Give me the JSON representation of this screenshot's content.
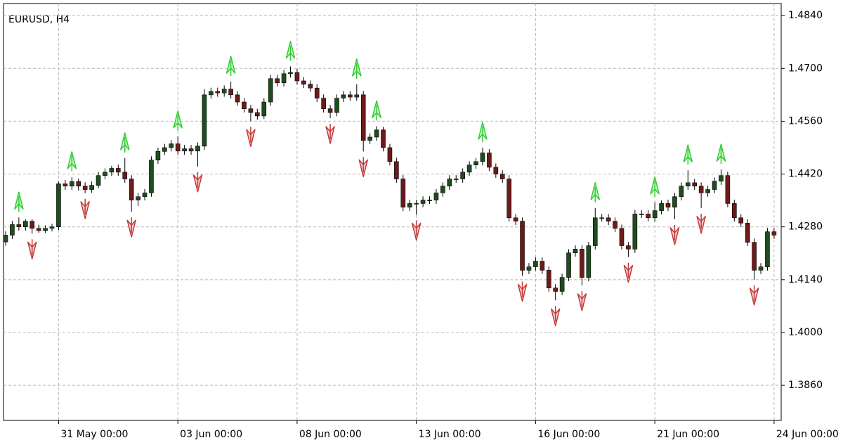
{
  "chart_data": {
    "type": "candlestick",
    "title": "EURUSD, H4",
    "categories": [
      null,
      null,
      null,
      null,
      null,
      null,
      null,
      null,
      "31 May 00:00",
      null,
      null,
      null,
      null,
      null,
      null,
      null,
      null,
      null,
      null,
      null,
      null,
      null,
      null,
      null,
      null,
      null,
      "03 Jun 00:00",
      null,
      null,
      null,
      null,
      null,
      null,
      null,
      null,
      null,
      null,
      null,
      null,
      null,
      null,
      null,
      null,
      null,
      "08 Jun 00:00",
      null,
      null,
      null,
      null,
      null,
      null,
      null,
      null,
      null,
      null,
      null,
      null,
      null,
      null,
      null,
      null,
      null,
      "13 Jun 00:00",
      null,
      null,
      null,
      null,
      null,
      null,
      null,
      null,
      null,
      null,
      null,
      null,
      null,
      null,
      null,
      null,
      null,
      "16 Jun 00:00",
      null,
      null,
      null,
      null,
      null,
      null,
      null,
      null,
      null,
      null,
      null,
      null,
      null,
      null,
      null,
      null,
      null,
      "21 Jun 00:00",
      null,
      null,
      null,
      null,
      null,
      null,
      null,
      null,
      null,
      null,
      null,
      null,
      null,
      null,
      null,
      null,
      null,
      "24 Jun 00:00"
    ],
    "open": [
      1.424,
      1.4258,
      1.4286,
      1.428,
      1.4295,
      1.4276,
      1.427,
      1.4276,
      1.428,
      1.4394,
      1.4388,
      1.44,
      1.4388,
      1.4379,
      1.439,
      1.4416,
      1.4425,
      1.4435,
      1.4425,
      1.4407,
      1.4351,
      1.436,
      1.437,
      1.4457,
      1.448,
      1.449,
      1.45,
      1.4481,
      1.4487,
      1.4481,
      1.4494,
      1.463,
      1.4639,
      1.4635,
      1.4645,
      1.463,
      1.4611,
      1.4593,
      1.4583,
      1.4574,
      1.4611,
      1.4673,
      1.4662,
      1.4686,
      1.4689,
      1.4667,
      1.4658,
      1.4648,
      1.4621,
      1.4593,
      1.4583,
      1.4621,
      1.463,
      1.4624,
      1.463,
      1.4509,
      1.4518,
      1.4537,
      1.449,
      1.4453,
      1.4407,
      1.4332,
      1.4342,
      1.4342,
      1.4351,
      1.4351,
      1.437,
      1.4388,
      1.4407,
      1.4407,
      1.4425,
      1.4444,
      1.4453,
      1.4476,
      1.4438,
      1.442,
      1.4407,
      1.4304,
      1.4295,
      1.4165,
      1.4174,
      1.4189,
      1.4165,
      1.4118,
      1.4109,
      1.4146,
      1.4211,
      1.4221,
      1.4146,
      1.423,
      1.4304,
      1.4304,
      1.4295,
      1.4276,
      1.423,
      1.4221,
      1.4314,
      1.4314,
      1.4304,
      1.4323,
      1.4342,
      1.4332,
      1.436,
      1.4388,
      1.4397,
      1.4388,
      1.437,
      1.4379,
      1.4401,
      1.4416,
      1.4342,
      1.4304,
      1.429,
      1.4239,
      1.4165,
      1.4174,
      1.4267
    ],
    "high": [
      1.4268,
      1.4296,
      1.4305,
      1.43,
      1.43,
      1.4286,
      1.4284,
      1.4288,
      1.44,
      1.4404,
      1.4412,
      1.4408,
      1.4398,
      1.44,
      1.4426,
      1.4435,
      1.4442,
      1.4445,
      1.4462,
      1.4417,
      1.437,
      1.438,
      1.4467,
      1.449,
      1.45,
      1.451,
      1.452,
      1.4497,
      1.4497,
      1.4504,
      1.4645,
      1.4649,
      1.4649,
      1.4655,
      1.4665,
      1.464,
      1.4621,
      1.4603,
      1.4593,
      1.4621,
      1.4683,
      1.4683,
      1.4696,
      1.4705,
      1.4699,
      1.4677,
      1.4668,
      1.4658,
      1.4631,
      1.4603,
      1.4631,
      1.464,
      1.464,
      1.4658,
      1.464,
      1.4528,
      1.4547,
      1.4545,
      1.45,
      1.4463,
      1.4417,
      1.4352,
      1.4352,
      1.4361,
      1.4361,
      1.438,
      1.4398,
      1.4417,
      1.4417,
      1.4435,
      1.4454,
      1.4463,
      1.449,
      1.4486,
      1.4448,
      1.443,
      1.4417,
      1.4314,
      1.4305,
      1.4184,
      1.4199,
      1.4199,
      1.4175,
      1.4128,
      1.4156,
      1.4221,
      1.4231,
      1.4231,
      1.424,
      1.433,
      1.4314,
      1.4314,
      1.4305,
      1.4286,
      1.424,
      1.4324,
      1.4324,
      1.4324,
      1.4345,
      1.435,
      1.4352,
      1.437,
      1.4398,
      1.443,
      1.4407,
      1.4398,
      1.4389,
      1.4411,
      1.4432,
      1.4426,
      1.4352,
      1.4314,
      1.43,
      1.4249,
      1.4184,
      1.4277,
      1.4277
    ],
    "low": [
      1.423,
      1.4248,
      1.427,
      1.427,
      1.4262,
      1.4264,
      1.4264,
      1.4268,
      1.4272,
      1.4378,
      1.4378,
      1.4376,
      1.4369,
      1.437,
      1.4382,
      1.4406,
      1.4415,
      1.4415,
      1.4397,
      1.432,
      1.4335,
      1.435,
      1.436,
      1.4447,
      1.447,
      1.448,
      1.4471,
      1.4471,
      1.4471,
      1.444,
      1.4484,
      1.462,
      1.4625,
      1.4625,
      1.462,
      1.4601,
      1.4583,
      1.456,
      1.4564,
      1.4566,
      1.4601,
      1.4652,
      1.4652,
      1.4676,
      1.4657,
      1.4648,
      1.4638,
      1.4611,
      1.4583,
      1.4568,
      1.4573,
      1.4611,
      1.4614,
      1.4614,
      1.448,
      1.4499,
      1.4508,
      1.448,
      1.4443,
      1.4397,
      1.4322,
      1.4322,
      1.4312,
      1.4332,
      1.4341,
      1.4341,
      1.436,
      1.4378,
      1.4397,
      1.4397,
      1.4415,
      1.4434,
      1.4443,
      1.4428,
      1.441,
      1.4397,
      1.4294,
      1.4285,
      1.415,
      1.4155,
      1.4164,
      1.4155,
      1.4108,
      1.4085,
      1.4099,
      1.4136,
      1.4201,
      1.4125,
      1.4136,
      1.422,
      1.4294,
      1.4285,
      1.4266,
      1.422,
      1.42,
      1.4211,
      1.4304,
      1.4294,
      1.4294,
      1.4313,
      1.4322,
      1.43,
      1.435,
      1.4378,
      1.4378,
      1.433,
      1.436,
      1.4369,
      1.4391,
      1.4332,
      1.4294,
      1.428,
      1.4229,
      1.414,
      1.4155,
      1.4164,
      1.4248
    ],
    "close": [
      1.4258,
      1.4286,
      1.428,
      1.4295,
      1.4276,
      1.427,
      1.4276,
      1.428,
      1.4394,
      1.4388,
      1.44,
      1.4388,
      1.4379,
      1.439,
      1.4416,
      1.4425,
      1.4435,
      1.4425,
      1.4407,
      1.4351,
      1.436,
      1.437,
      1.4457,
      1.448,
      1.449,
      1.45,
      1.4481,
      1.4487,
      1.4481,
      1.4494,
      1.463,
      1.4639,
      1.4635,
      1.4645,
      1.463,
      1.4611,
      1.4593,
      1.4583,
      1.4574,
      1.4611,
      1.4673,
      1.4662,
      1.4686,
      1.4689,
      1.4667,
      1.4658,
      1.4648,
      1.4621,
      1.4593,
      1.4583,
      1.4621,
      1.463,
      1.4624,
      1.463,
      1.4509,
      1.4518,
      1.4537,
      1.449,
      1.4453,
      1.4407,
      1.4332,
      1.4342,
      1.4342,
      1.4351,
      1.4351,
      1.437,
      1.4388,
      1.4407,
      1.4407,
      1.4425,
      1.4444,
      1.4453,
      1.4476,
      1.4438,
      1.442,
      1.4407,
      1.4304,
      1.4295,
      1.4165,
      1.4174,
      1.4189,
      1.4165,
      1.4118,
      1.4109,
      1.4146,
      1.4211,
      1.4221,
      1.4146,
      1.423,
      1.4304,
      1.4304,
      1.4295,
      1.4276,
      1.423,
      1.4221,
      1.4314,
      1.4314,
      1.4304,
      1.4323,
      1.4342,
      1.4332,
      1.436,
      1.4388,
      1.4397,
      1.4388,
      1.437,
      1.4379,
      1.4401,
      1.4416,
      1.4342,
      1.4304,
      1.429,
      1.4239,
      1.4165,
      1.4174,
      1.4267,
      1.4258
    ],
    "fractal_up": {
      "color": "#33cc33",
      "x": [
        2,
        10,
        18,
        26,
        34,
        43,
        53,
        56,
        72,
        89,
        98,
        103,
        108
      ],
      "values": [
        1.4305,
        1.4412,
        1.4462,
        1.452,
        1.4665,
        1.4705,
        1.4658,
        1.4547,
        1.449,
        1.433,
        1.4345,
        1.443,
        1.4432
      ]
    },
    "fractal_down": {
      "color": "#c43a3a",
      "x": [
        4,
        12,
        19,
        29,
        37,
        49,
        54,
        62,
        78,
        83,
        87,
        94,
        101,
        105,
        113
      ],
      "values": [
        1.4262,
        1.4369,
        1.432,
        1.444,
        1.456,
        1.4568,
        1.448,
        1.4312,
        1.415,
        1.4085,
        1.4125,
        1.42,
        1.43,
        1.433,
        1.414
      ]
    },
    "up_color": "#1e4d1e",
    "down_color": "#6e1a1a",
    "ylim": [
      1.3767,
      1.4872
    ],
    "yticks": [
      {
        "value": 1.386,
        "label": "1.3860"
      },
      {
        "value": 1.4,
        "label": "1.4000"
      },
      {
        "value": 1.414,
        "label": "1.4140"
      },
      {
        "value": 1.428,
        "label": "1.4280"
      },
      {
        "value": 1.442,
        "label": "1.4420"
      },
      {
        "value": 1.456,
        "label": "1.4560"
      },
      {
        "value": 1.47,
        "label": "1.4700"
      },
      {
        "value": 1.484,
        "label": "1.4840"
      }
    ],
    "grid": true
  }
}
